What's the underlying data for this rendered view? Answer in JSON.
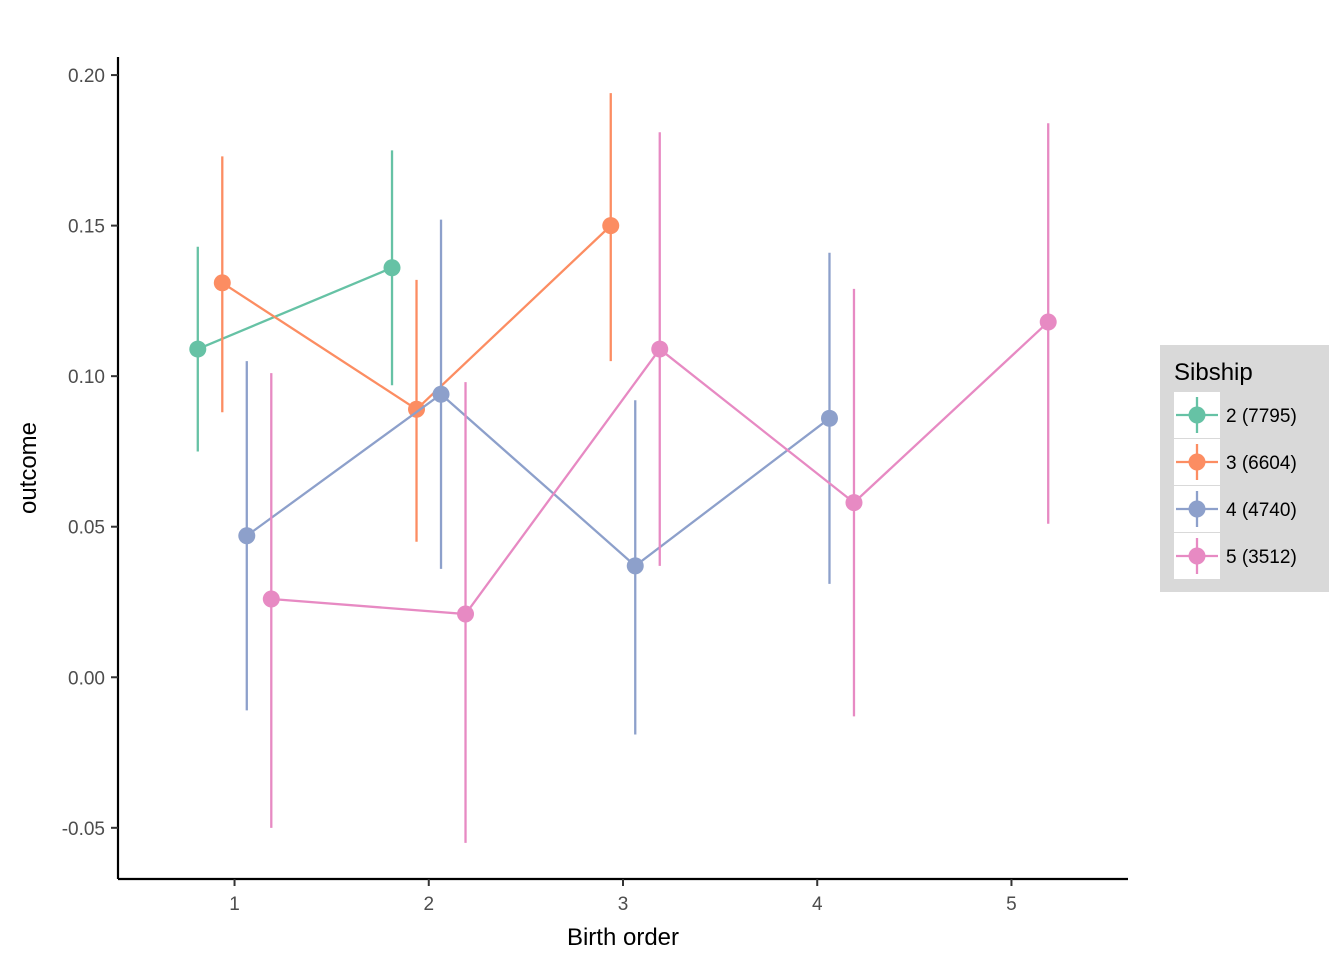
{
  "chart_data": {
    "type": "line",
    "xlabel": "Birth order",
    "ylabel": "outcome",
    "xlim": [
      0.4,
      5.6
    ],
    "ylim": [
      -0.067,
      0.206
    ],
    "x_ticks": [
      1,
      2,
      3,
      4,
      5
    ],
    "x_tick_labels": [
      "1",
      "2",
      "3",
      "4",
      "5"
    ],
    "y_ticks": [
      -0.05,
      0.0,
      0.05,
      0.1,
      0.15,
      0.2
    ],
    "y_tick_labels": [
      "-0.05",
      "0.00",
      "0.05",
      "0.10",
      "0.15",
      "0.20"
    ],
    "grid": false,
    "error_bars": true,
    "dodge": true,
    "legend": {
      "title": "Sibship",
      "position": "right"
    },
    "series": [
      {
        "name": "2 (7795)",
        "color": "#66c2a5",
        "points": [
          {
            "x": 1,
            "y": 0.109,
            "lower": 0.075,
            "upper": 0.143
          },
          {
            "x": 2,
            "y": 0.136,
            "lower": 0.097,
            "upper": 0.175
          }
        ]
      },
      {
        "name": "3 (6604)",
        "color": "#fc8d62",
        "points": [
          {
            "x": 1,
            "y": 0.131,
            "lower": 0.088,
            "upper": 0.173
          },
          {
            "x": 2,
            "y": 0.089,
            "lower": 0.045,
            "upper": 0.132
          },
          {
            "x": 3,
            "y": 0.15,
            "lower": 0.105,
            "upper": 0.194
          }
        ]
      },
      {
        "name": "4 (4740)",
        "color": "#8da0cb",
        "points": [
          {
            "x": 1,
            "y": 0.047,
            "lower": -0.011,
            "upper": 0.105
          },
          {
            "x": 2,
            "y": 0.094,
            "lower": 0.036,
            "upper": 0.152
          },
          {
            "x": 3,
            "y": 0.037,
            "lower": -0.019,
            "upper": 0.092
          },
          {
            "x": 4,
            "y": 0.086,
            "lower": 0.031,
            "upper": 0.141
          }
        ]
      },
      {
        "name": "5 (3512)",
        "color": "#e78ac3",
        "points": [
          {
            "x": 1,
            "y": 0.026,
            "lower": -0.05,
            "upper": 0.101
          },
          {
            "x": 2,
            "y": 0.021,
            "lower": -0.055,
            "upper": 0.098
          },
          {
            "x": 3,
            "y": 0.109,
            "lower": 0.037,
            "upper": 0.181
          },
          {
            "x": 4,
            "y": 0.058,
            "lower": -0.013,
            "upper": 0.129
          },
          {
            "x": 5,
            "y": 0.118,
            "lower": 0.051,
            "upper": 0.184
          }
        ]
      }
    ]
  }
}
